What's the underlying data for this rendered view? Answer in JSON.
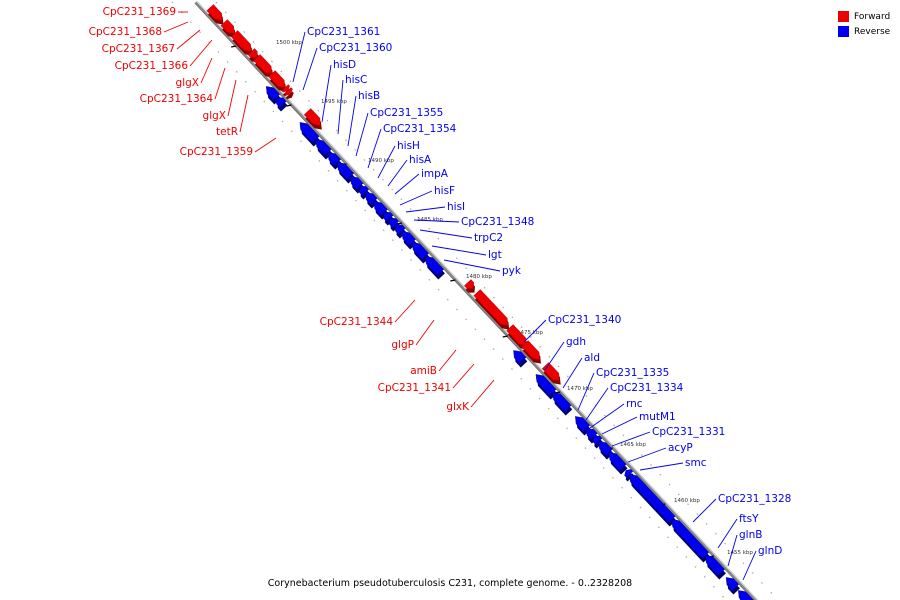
{
  "colors": {
    "forward": "#ee0000",
    "reverse": "#0000ee",
    "backbone": "#888888"
  },
  "legend": [
    {
      "label": "Forward",
      "color": "#ee0000"
    },
    {
      "label": "Reverse",
      "color": "#0000ee"
    }
  ],
  "footer": "Corynebacterium pseudotuberculosis C231, complete genome. - 0..2328208",
  "ticks": [
    "1500 kbp",
    "1495 kbp",
    "1490 kbp",
    "1485 kbp",
    "1480 kbp",
    "1475 kbp",
    "1470 kbp",
    "1465 kbp",
    "1460 kbp",
    "1455 kbp"
  ],
  "genes": [
    {
      "name": "CpC231_1369",
      "strand": "forward"
    },
    {
      "name": "CpC231_1368",
      "strand": "forward"
    },
    {
      "name": "CpC231_1367",
      "strand": "forward"
    },
    {
      "name": "CpC231_1366",
      "strand": "forward"
    },
    {
      "name": "glgX",
      "strand": "forward"
    },
    {
      "name": "CpC231_1364",
      "strand": "forward"
    },
    {
      "name": "glgX",
      "strand": "forward"
    },
    {
      "name": "tetR",
      "strand": "forward"
    },
    {
      "name": "CpC231_1359",
      "strand": "forward"
    },
    {
      "name": "CpC231_1361",
      "strand": "reverse"
    },
    {
      "name": "CpC231_1360",
      "strand": "reverse"
    },
    {
      "name": "hisD",
      "strand": "reverse"
    },
    {
      "name": "hisC",
      "strand": "reverse"
    },
    {
      "name": "hisB",
      "strand": "reverse"
    },
    {
      "name": "CpC231_1355",
      "strand": "reverse"
    },
    {
      "name": "CpC231_1354",
      "strand": "reverse"
    },
    {
      "name": "hisH",
      "strand": "reverse"
    },
    {
      "name": "hisA",
      "strand": "reverse"
    },
    {
      "name": "impA",
      "strand": "reverse"
    },
    {
      "name": "hisF",
      "strand": "reverse"
    },
    {
      "name": "hisI",
      "strand": "reverse"
    },
    {
      "name": "CpC231_1348",
      "strand": "reverse"
    },
    {
      "name": "trpC2",
      "strand": "reverse"
    },
    {
      "name": "lgt",
      "strand": "reverse"
    },
    {
      "name": "pyk",
      "strand": "reverse"
    },
    {
      "name": "CpC231_1344",
      "strand": "forward"
    },
    {
      "name": "glgP",
      "strand": "forward"
    },
    {
      "name": "amiB",
      "strand": "forward"
    },
    {
      "name": "CpC231_1341",
      "strand": "forward"
    },
    {
      "name": "glxK",
      "strand": "forward"
    },
    {
      "name": "CpC231_1340",
      "strand": "reverse"
    },
    {
      "name": "gdh",
      "strand": "reverse"
    },
    {
      "name": "ald",
      "strand": "reverse"
    },
    {
      "name": "CpC231_1335",
      "strand": "reverse"
    },
    {
      "name": "CpC231_1334",
      "strand": "reverse"
    },
    {
      "name": "rnc",
      "strand": "reverse"
    },
    {
      "name": "mutM1",
      "strand": "reverse"
    },
    {
      "name": "CpC231_1331",
      "strand": "reverse"
    },
    {
      "name": "acyP",
      "strand": "reverse"
    },
    {
      "name": "smc",
      "strand": "reverse"
    },
    {
      "name": "CpC231_1328",
      "strand": "reverse"
    },
    {
      "name": "ftsY",
      "strand": "reverse"
    },
    {
      "name": "glnB",
      "strand": "reverse"
    },
    {
      "name": "glnD",
      "strand": "reverse"
    }
  ]
}
